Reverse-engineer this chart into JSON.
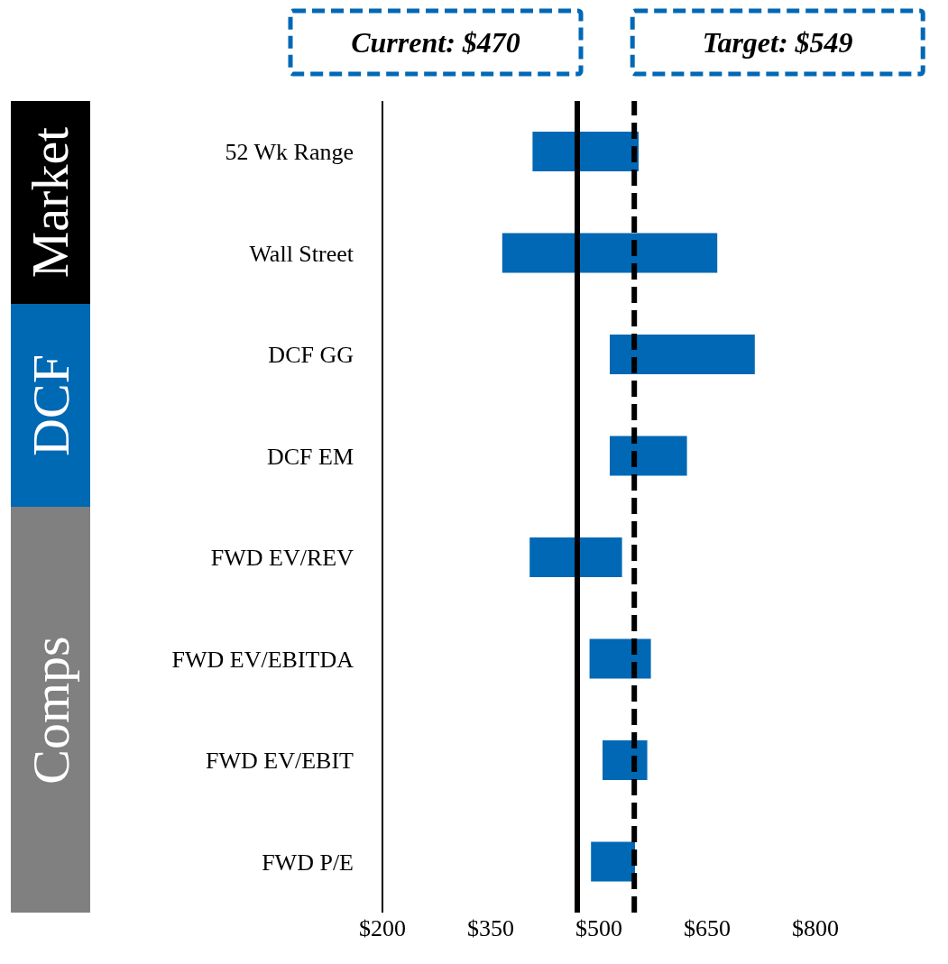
{
  "chart_data": {
    "type": "bar",
    "orientation": "horizontal",
    "categories": [
      "52 Wk Range",
      "Wall Street",
      "DCF GG",
      "DCF EM",
      "FWD EV/REV",
      "FWD EV/EBITDA",
      "FWD EV/EBIT",
      "FWD P/E"
    ],
    "base": [
      408,
      366,
      515,
      515,
      404,
      487,
      505,
      489
    ],
    "values": [
      147,
      298,
      201,
      107,
      128,
      85,
      62,
      61
    ],
    "color": "#0068b4",
    "xlim": [
      200,
      800
    ],
    "xticks": [
      {
        "value": 200,
        "label": "$200"
      },
      {
        "value": 350,
        "label": "$350"
      },
      {
        "value": 500,
        "label": "$500"
      },
      {
        "value": 650,
        "label": "$650"
      },
      {
        "value": 800,
        "label": "$800"
      }
    ],
    "ref_lines": [
      {
        "axis": "x",
        "value": 470,
        "label": "Current: $470",
        "color": "#000000",
        "line_style": "solid"
      },
      {
        "axis": "x",
        "value": 549,
        "label": "Target: $549",
        "color": "#000000",
        "line_style": "dashed"
      }
    ],
    "annotations": [
      "Market",
      "DCF",
      "Comps"
    ],
    "grid": false,
    "legend": false
  }
}
